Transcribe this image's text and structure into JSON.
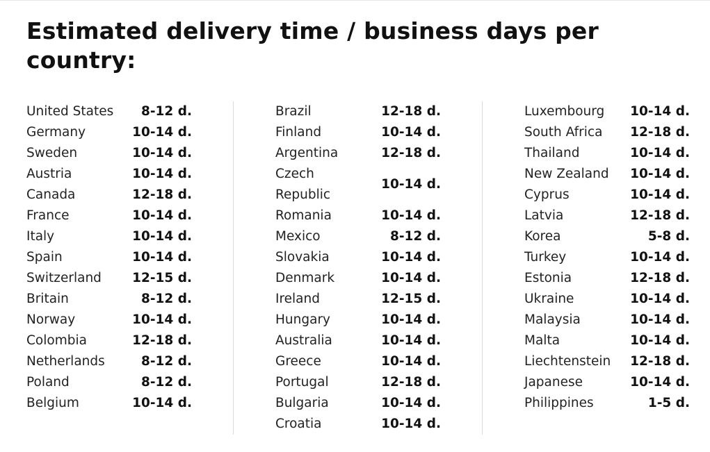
{
  "title": "Estimated delivery time / business days per country:",
  "columns": [
    {
      "rows": [
        {
          "country": "United States",
          "days": "8-12 d."
        },
        {
          "country": "Germany",
          "days": "10-14 d."
        },
        {
          "country": "Sweden",
          "days": "10-14 d."
        },
        {
          "country": "Austria",
          "days": "10-14 d."
        },
        {
          "country": "Canada",
          "days": "12-18 d."
        },
        {
          "country": "France",
          "days": "10-14 d."
        },
        {
          "country": "Italy",
          "days": "10-14 d."
        },
        {
          "country": "Spain",
          "days": "10-14 d."
        },
        {
          "country": "Switzerland",
          "days": "12-15 d."
        },
        {
          "country": "Britain",
          "days": "8-12 d."
        },
        {
          "country": "Norway",
          "days": "10-14 d."
        },
        {
          "country": "Colombia",
          "days": "12-18 d."
        },
        {
          "country": "Netherlands",
          "days": "8-12 d."
        },
        {
          "country": "Poland",
          "days": "8-12 d."
        },
        {
          "country": "Belgium",
          "days": "10-14 d."
        }
      ]
    },
    {
      "rows": [
        {
          "country": "Brazil",
          "days": "12-18 d."
        },
        {
          "country": "Finland",
          "days": "10-14 d."
        },
        {
          "country": "Argentina",
          "days": "12-18 d."
        },
        {
          "country": "Czech Republic",
          "days": "10-14 d.",
          "wrap": true
        },
        {
          "country": "Romania",
          "days": "10-14 d."
        },
        {
          "country": "Mexico",
          "days": "8-12 d."
        },
        {
          "country": "Slovakia",
          "days": "10-14 d."
        },
        {
          "country": "Denmark",
          "days": "10-14 d."
        },
        {
          "country": "Ireland",
          "days": "12-15 d."
        },
        {
          "country": "Hungary",
          "days": "10-14 d."
        },
        {
          "country": "Australia",
          "days": "10-14 d."
        },
        {
          "country": "Greece",
          "days": "10-14 d."
        },
        {
          "country": "Portugal",
          "days": "12-18 d."
        },
        {
          "country": "Bulgaria",
          "days": "10-14 d."
        },
        {
          "country": "Croatia",
          "days": "10-14 d."
        }
      ]
    },
    {
      "rows": [
        {
          "country": "Luxembourg",
          "days": "10-14 d."
        },
        {
          "country": "South Africa",
          "days": "12-18 d."
        },
        {
          "country": "Thailand",
          "days": "10-14 d."
        },
        {
          "country": "New Zealand",
          "days": "10-14 d."
        },
        {
          "country": "Cyprus",
          "days": "10-14 d."
        },
        {
          "country": "Latvia",
          "days": "12-18 d."
        },
        {
          "country": "Korea",
          "days": "5-8 d."
        },
        {
          "country": "Turkey",
          "days": "10-14 d."
        },
        {
          "country": "Estonia",
          "days": "12-18 d."
        },
        {
          "country": "Ukraine",
          "days": "10-14 d."
        },
        {
          "country": "Malaysia",
          "days": "10-14 d."
        },
        {
          "country": "Malta",
          "days": "10-14 d."
        },
        {
          "country": "Liechtenstein",
          "days": "12-18 d."
        },
        {
          "country": "Japanese",
          "days": "10-14 d."
        },
        {
          "country": "Philippines",
          "days": "1-5 d."
        }
      ]
    }
  ]
}
